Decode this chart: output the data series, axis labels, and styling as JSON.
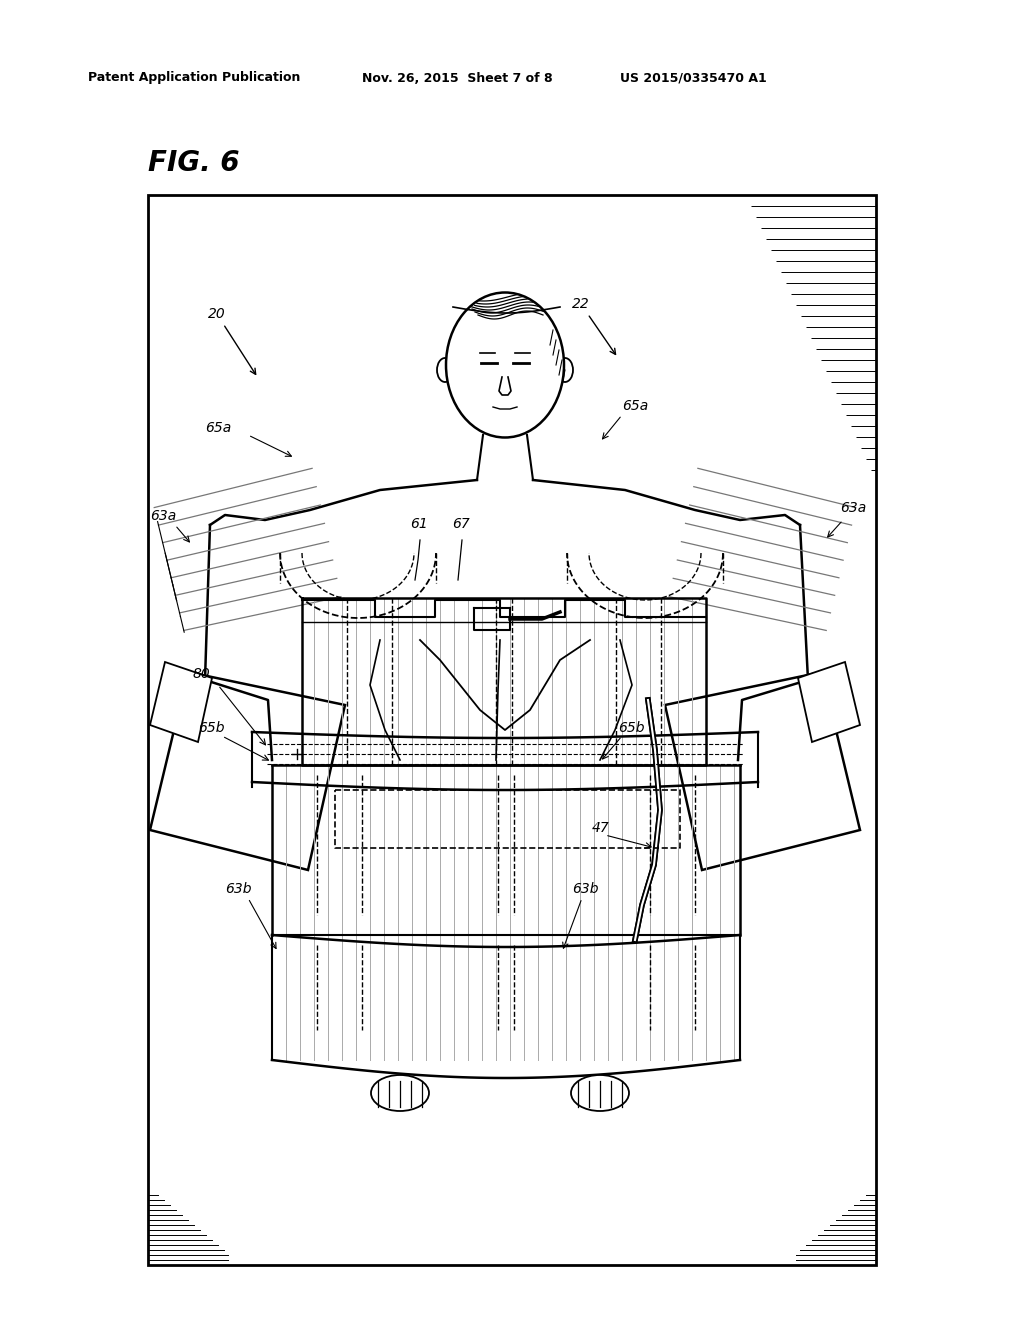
{
  "bg_color": "#ffffff",
  "border_color": "#000000",
  "header_text1": "Patent Application Publication",
  "header_text2": "Nov. 26, 2015  Sheet 7 of 8",
  "header_text3": "US 2015/0335470 A1",
  "fig_label": "FIG. 6",
  "line_color": "#000000"
}
